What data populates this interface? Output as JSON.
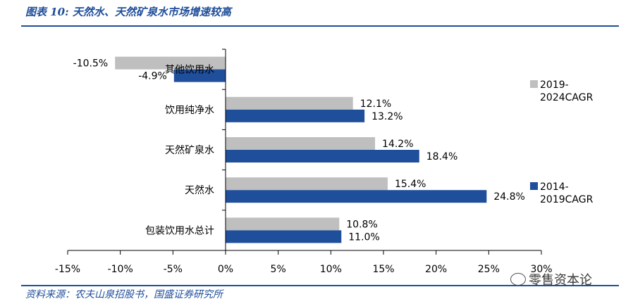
{
  "figure_title": "图表 10: 天然水、天然矿泉水市场增速较高",
  "source": "资料来源：农夫山泉招股书，国盛证券研究所",
  "watermark": "零售资本论",
  "colors": {
    "series_2019_2024": "#bfbfbf",
    "series_2014_2019": "#1f4e9a",
    "title": "#1f4e9a"
  },
  "chart_data": {
    "type": "bar",
    "orientation": "horizontal",
    "categories": [
      "其他饮用水",
      "饮用纯净水",
      "天然矿泉水",
      "天然水",
      "包装饮用水总计"
    ],
    "series": [
      {
        "name": "2019-2024CAGR",
        "values": [
          -10.5,
          12.1,
          14.2,
          15.4,
          10.8
        ],
        "labels": [
          "-10.5%",
          "12.1%",
          "14.2%",
          "15.4%",
          "10.8%"
        ]
      },
      {
        "name": "2014-2019CAGR",
        "values": [
          -4.9,
          13.2,
          18.4,
          24.8,
          11.0
        ],
        "labels": [
          "-4.9%",
          "13.2%",
          "18.4%",
          "24.8%",
          "11.0%"
        ]
      }
    ],
    "xlim": [
      -15,
      30
    ],
    "xticks": [
      -15,
      -10,
      -5,
      0,
      5,
      10,
      15,
      20,
      25,
      30
    ],
    "xtick_labels": [
      "-15%",
      "-10%",
      "-5%",
      "0%",
      "5%",
      "10%",
      "15%",
      "20%",
      "25%",
      "30%"
    ],
    "legend": {
      "placement": "right",
      "entries": [
        {
          "line1": "2019-",
          "line2": "2024CAGR"
        },
        {
          "line1": "2014-",
          "line2": "2019CAGR"
        }
      ]
    },
    "grid": false
  }
}
